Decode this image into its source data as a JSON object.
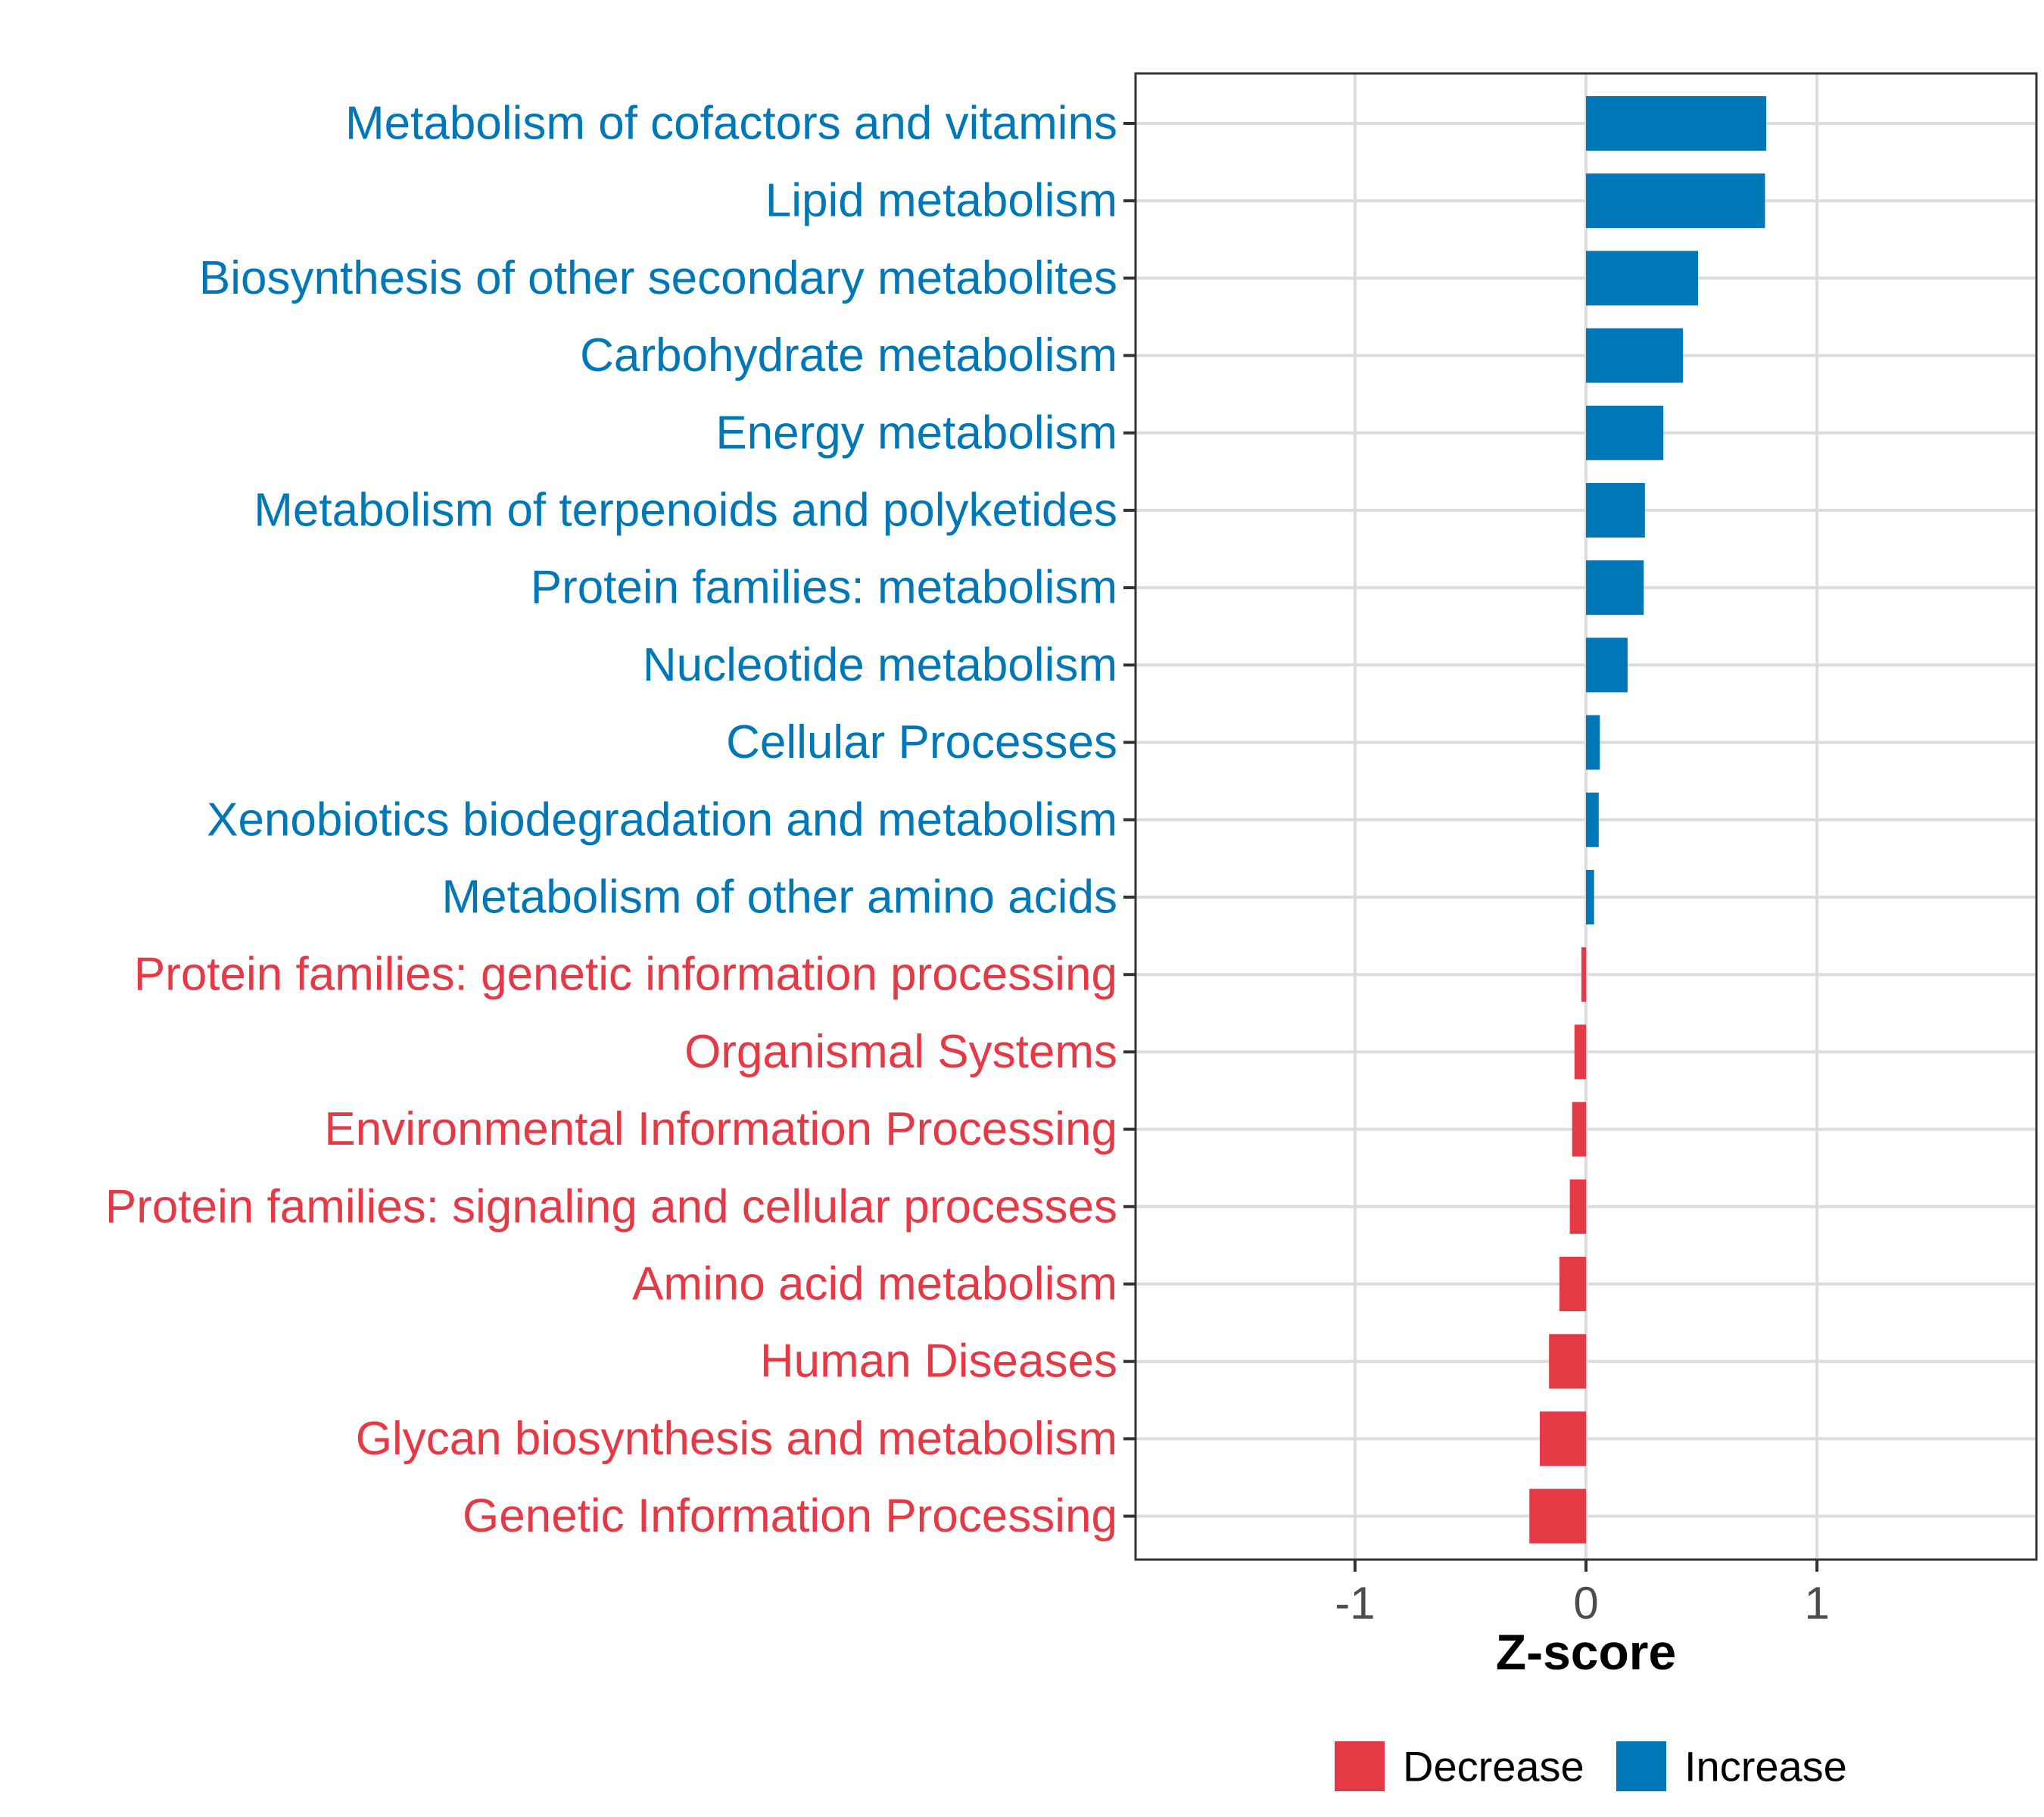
{
  "chart_data": {
    "type": "bar",
    "orientation": "horizontal",
    "categories": [
      "Metabolism of cofactors and vitamins",
      "Lipid metabolism",
      "Biosynthesis of other secondary metabolites",
      "Carbohydrate metabolism",
      "Energy metabolism",
      "Metabolism of terpenoids and polyketides",
      "Protein families: metabolism",
      "Nucleotide metabolism",
      "Cellular Processes",
      "Xenobiotics biodegradation and metabolism",
      "Metabolism of other amino acids",
      "Protein families: genetic information processing",
      "Organismal Systems",
      "Environmental Information Processing",
      "Protein families: signaling and cellular processes",
      "Amino acid metabolism",
      "Human Diseases",
      "Glycan biosynthesis and metabolism",
      "Genetic Information Processing"
    ],
    "values": [
      0.78,
      0.775,
      0.485,
      0.42,
      0.335,
      0.255,
      0.25,
      0.18,
      0.06,
      0.055,
      0.035,
      -0.02,
      -0.05,
      -0.06,
      -0.07,
      -0.115,
      -0.16,
      -0.2,
      -0.245
    ],
    "xlabel": "Z-score",
    "ylabel": "",
    "xlim": [
      -1.95,
      1.95
    ],
    "xticks": [
      -1,
      0,
      1
    ],
    "xtick_labels": [
      "-1",
      "0",
      "1"
    ],
    "grid": true,
    "legend": {
      "position": "bottom",
      "entries": [
        {
          "name": "Decrease",
          "color": "#e63946"
        },
        {
          "name": "Increase",
          "color": "#0077b6"
        }
      ]
    },
    "colors": {
      "Increase": "#0077b6",
      "Decrease": "#e63946"
    }
  }
}
